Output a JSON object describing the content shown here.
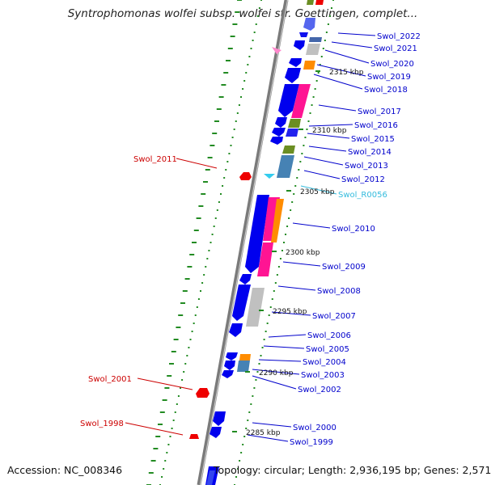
{
  "header": {
    "title": "Syntrophomonas wolfei subsp. wolfei str. Goettingen, complet..."
  },
  "footer": {
    "accession": "Accession: NC_008346",
    "topology": "Topology: circular; Length: 2,936,195 bp; Genes: 2,571"
  },
  "colors": {
    "backbone": "#808080",
    "gene_blue": "#0000ee",
    "gene_pink": "#ff1493",
    "gene_orange": "#ff8c00",
    "gene_grey": "#c0c0c0",
    "gene_olive": "#6b8e23",
    "gene_steel": "#4682b4",
    "gene_red": "#ee0000",
    "rna_cyan": "#33ccee",
    "label_right": "#0000cc",
    "label_left": "#cc0000",
    "label_rna": "#33bbdd",
    "tick_green": "#228b22"
  },
  "scale_ticks": [
    "2315 kbp",
    "2310 kbp",
    "2305 kbp",
    "2300 kbp",
    "2295 kbp",
    "2290 kbp",
    "2285 kbp"
  ],
  "labels_right": [
    {
      "name": "Swol_2022",
      "color": "blue"
    },
    {
      "name": "Swol_2021",
      "color": "blue"
    },
    {
      "name": "Swol_2020",
      "color": "blue"
    },
    {
      "name": "Swol_2019",
      "color": "blue"
    },
    {
      "name": "Swol_2018",
      "color": "blue"
    },
    {
      "name": "Swol_2017",
      "color": "blue"
    },
    {
      "name": "Swol_2016",
      "color": "blue"
    },
    {
      "name": "Swol_2015",
      "color": "blue"
    },
    {
      "name": "Swol_2014",
      "color": "blue"
    },
    {
      "name": "Swol_2013",
      "color": "blue"
    },
    {
      "name": "Swol_2012",
      "color": "blue"
    },
    {
      "name": "Swol_R0056",
      "color": "cyan"
    },
    {
      "name": "Swol_2010",
      "color": "blue"
    },
    {
      "name": "Swol_2009",
      "color": "blue"
    },
    {
      "name": "Swol_2008",
      "color": "blue"
    },
    {
      "name": "Swol_2007",
      "color": "blue"
    },
    {
      "name": "Swol_2006",
      "color": "blue"
    },
    {
      "name": "Swol_2005",
      "color": "blue"
    },
    {
      "name": "Swol_2004",
      "color": "blue"
    },
    {
      "name": "Swol_2003",
      "color": "blue"
    },
    {
      "name": "Swol_2002",
      "color": "blue"
    },
    {
      "name": "Swol_2000",
      "color": "blue"
    },
    {
      "name": "Swol_1999",
      "color": "blue"
    }
  ],
  "labels_left": [
    {
      "name": "Swol_2011",
      "color": "red"
    },
    {
      "name": "Swol_2001",
      "color": "red"
    },
    {
      "name": "Swol_1998",
      "color": "red"
    }
  ]
}
